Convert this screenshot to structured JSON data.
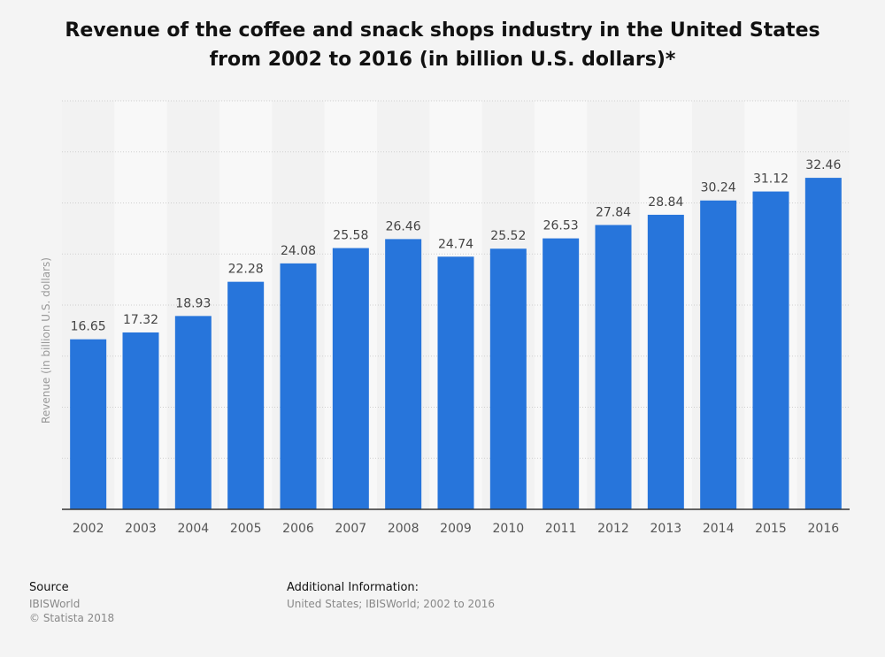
{
  "chart_data": {
    "type": "bar",
    "title": "Revenue of the coffee and snack shops industry in the United States from 2002 to 2016 (in billion U.S. dollars)*",
    "title_lines": [
      "Revenue of the coffee and snack shops industry in the United States",
      "from 2002 to 2016 (in billion U.S. dollars)*"
    ],
    "xlabel": "",
    "ylabel": "Revenue (in billion U.S. dollars)",
    "categories": [
      "2002",
      "2003",
      "2004",
      "2005",
      "2006",
      "2007",
      "2008",
      "2009",
      "2010",
      "2011",
      "2012",
      "2013",
      "2014",
      "2015",
      "2016"
    ],
    "values": [
      16.65,
      17.32,
      18.93,
      22.28,
      24.08,
      25.58,
      26.46,
      24.74,
      25.52,
      26.53,
      27.84,
      28.84,
      30.24,
      31.12,
      32.46
    ],
    "value_labels": [
      "16.65",
      "17.32",
      "18.93",
      "22.28",
      "24.08",
      "25.58",
      "26.46",
      "24.74",
      "25.52",
      "26.53",
      "27.84",
      "28.84",
      "30.24",
      "31.12",
      "32.46"
    ],
    "ylim": [
      0,
      40
    ],
    "grid": true,
    "legend": "none",
    "colors": {
      "bar": "#2775db",
      "grid": "#cfcfcf",
      "axis": "#333333",
      "band_light": "#f8f8f8",
      "band_dark": "#f2f2f2"
    }
  },
  "footer": {
    "source_heading": "Source",
    "source_lines": [
      "IBISWorld",
      "© Statista 2018"
    ],
    "additional_heading": "Additional Information:",
    "additional_lines": [
      "United States; IBISWorld; 2002 to 2016"
    ]
  }
}
